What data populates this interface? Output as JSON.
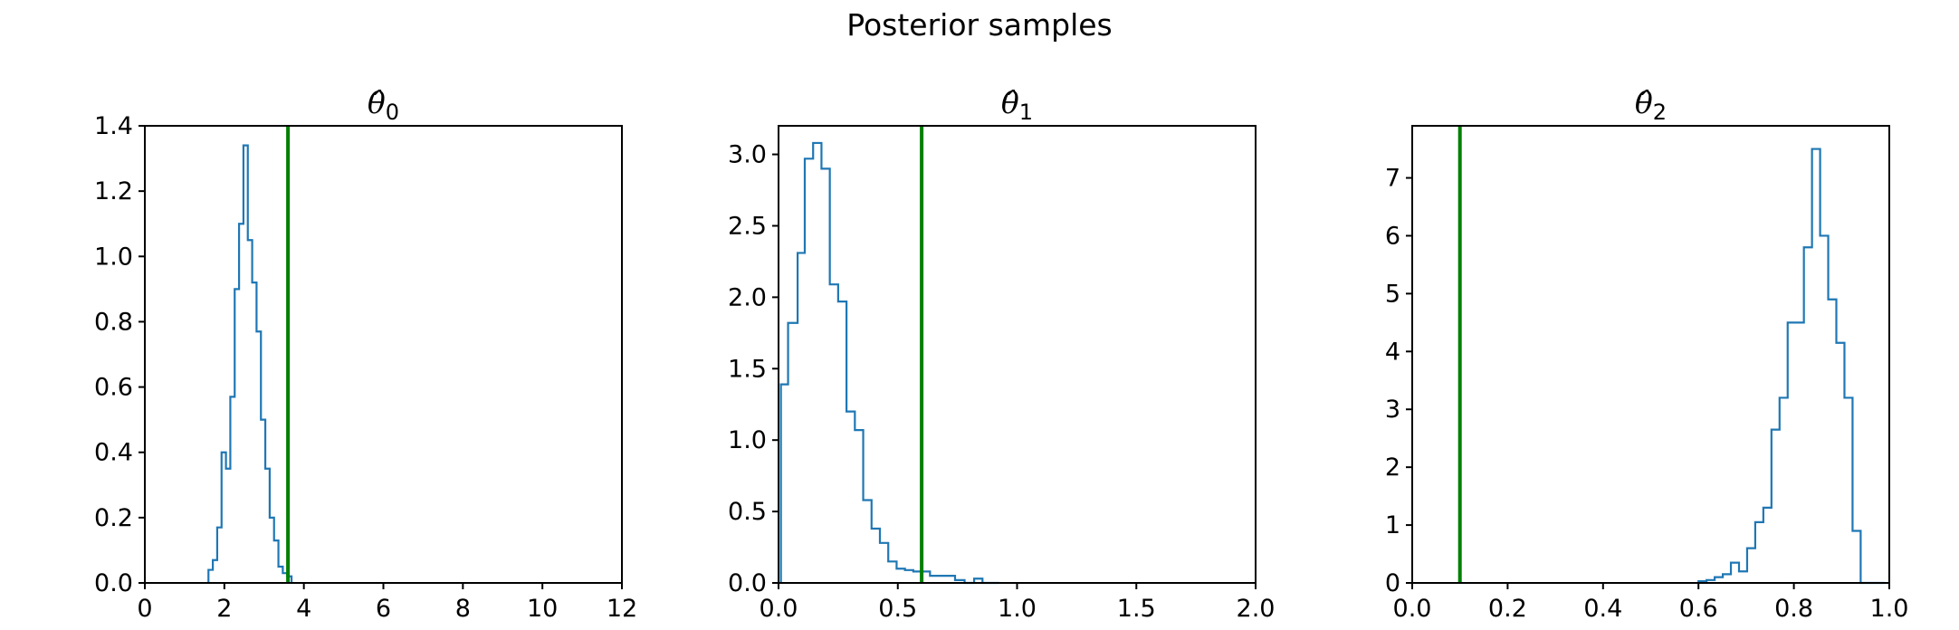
{
  "figure_title": "Posterior samples",
  "colors": {
    "histogram": "#1f77b4",
    "true_value_line": "#008000"
  },
  "chart_data": [
    {
      "type": "histogram",
      "title_symbol": "θ̂",
      "title_subscript": "0",
      "xlim": [
        0,
        12
      ],
      "ylim": [
        0,
        1.4
      ],
      "xticks": [
        "0",
        "2",
        "4",
        "6",
        "8",
        "10",
        "12"
      ],
      "xtick_values": [
        0,
        2,
        4,
        6,
        8,
        10,
        12
      ],
      "yticks": [
        "0.0",
        "0.2",
        "0.4",
        "0.6",
        "0.8",
        "1.0",
        "1.2",
        "1.4"
      ],
      "ytick_values": [
        0,
        0.2,
        0.4,
        0.6,
        0.8,
        1.0,
        1.2,
        1.4
      ],
      "bin_edges": [
        1.6,
        1.71,
        1.82,
        1.93,
        2.04,
        2.15,
        2.26,
        2.37,
        2.48,
        2.59,
        2.7,
        2.81,
        2.92,
        3.03,
        3.14,
        3.25,
        3.36,
        3.47,
        3.58,
        3.69
      ],
      "densities": [
        0.04,
        0.07,
        0.17,
        0.4,
        0.35,
        0.57,
        0.9,
        1.1,
        1.34,
        1.05,
        0.92,
        0.77,
        0.5,
        0.35,
        0.2,
        0.13,
        0.05,
        0.03,
        0.02
      ],
      "true_value": 3.6
    },
    {
      "type": "histogram",
      "title_symbol": "θ̂",
      "title_subscript": "1",
      "xlim": [
        0,
        2.0
      ],
      "ylim": [
        0,
        3.2
      ],
      "xticks": [
        "0.0",
        "0.5",
        "1.0",
        "1.5",
        "2.0"
      ],
      "xtick_values": [
        0,
        0.5,
        1.0,
        1.5,
        2.0
      ],
      "yticks": [
        "0.0",
        "0.5",
        "1.0",
        "1.5",
        "2.0",
        "2.5",
        "3.0"
      ],
      "ytick_values": [
        0,
        0.5,
        1.0,
        1.5,
        2.0,
        2.5,
        3.0
      ],
      "bin_edges": [
        0.01,
        0.04,
        0.08,
        0.11,
        0.145,
        0.18,
        0.215,
        0.25,
        0.285,
        0.32,
        0.355,
        0.39,
        0.425,
        0.46,
        0.495,
        0.53,
        0.565,
        0.6,
        0.635,
        0.67,
        0.705,
        0.74,
        0.78,
        0.82,
        0.855,
        0.89,
        0.925
      ],
      "densities": [
        1.39,
        1.82,
        2.31,
        2.97,
        3.08,
        2.9,
        2.09,
        1.97,
        1.2,
        1.07,
        0.58,
        0.38,
        0.28,
        0.15,
        0.1,
        0.09,
        0.08,
        0.08,
        0.05,
        0.05,
        0.05,
        0.02,
        0.0,
        0.03,
        0.0,
        0.0
      ],
      "true_value": 0.6
    },
    {
      "type": "histogram",
      "title_symbol": "θ̂",
      "title_subscript": "2",
      "xlim": [
        0,
        1.0
      ],
      "ylim": [
        0,
        7.9
      ],
      "xticks": [
        "0.0",
        "0.2",
        "0.4",
        "0.6",
        "0.8",
        "1.0"
      ],
      "xtick_values": [
        0,
        0.2,
        0.4,
        0.6,
        0.8,
        1.0
      ],
      "yticks": [
        "0",
        "1",
        "2",
        "3",
        "4",
        "5",
        "6",
        "7"
      ],
      "ytick_values": [
        0,
        1,
        2,
        3,
        4,
        5,
        6,
        7
      ],
      "bin_edges": [
        0.6,
        0.617,
        0.634,
        0.651,
        0.668,
        0.685,
        0.702,
        0.719,
        0.736,
        0.753,
        0.77,
        0.787,
        0.804,
        0.821,
        0.838,
        0.855,
        0.872,
        0.889,
        0.906,
        0.923,
        0.94,
        0.957,
        0.974,
        0.991
      ],
      "densities": [
        0.03,
        0.05,
        0.1,
        0.15,
        0.35,
        0.2,
        0.6,
        1.05,
        1.3,
        2.65,
        3.2,
        4.5,
        4.5,
        5.8,
        7.5,
        6.0,
        4.9,
        4.15,
        3.2,
        0.9,
        0.0,
        0.0,
        0.0
      ],
      "true_value": 0.1
    }
  ]
}
